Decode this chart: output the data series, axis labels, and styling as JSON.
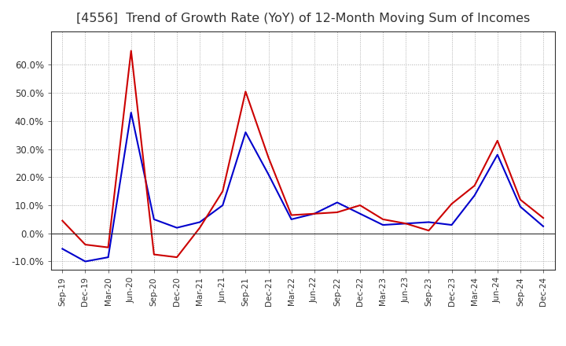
{
  "title": "[4556]  Trend of Growth Rate (YoY) of 12-Month Moving Sum of Incomes",
  "title_fontsize": 11.5,
  "xlabel": "",
  "ylabel": "",
  "ylim": [
    -0.13,
    0.72
  ],
  "yticks": [
    -0.1,
    0.0,
    0.1,
    0.2,
    0.3,
    0.4,
    0.5,
    0.6
  ],
  "background_color": "#ffffff",
  "grid_color": "#aaaaaa",
  "line_color_ordinary": "#0000cc",
  "line_color_net": "#cc0000",
  "x_labels": [
    "Sep-19",
    "Dec-19",
    "Mar-20",
    "Jun-20",
    "Sep-20",
    "Dec-20",
    "Mar-21",
    "Jun-21",
    "Sep-21",
    "Dec-21",
    "Mar-22",
    "Jun-22",
    "Sep-22",
    "Dec-22",
    "Mar-23",
    "Jun-23",
    "Sep-23",
    "Dec-23",
    "Mar-24",
    "Jun-24",
    "Sep-24",
    "Dec-24"
  ],
  "ordinary_income": [
    -0.055,
    -0.1,
    -0.085,
    0.43,
    0.05,
    0.02,
    0.04,
    0.1,
    0.36,
    0.21,
    0.05,
    0.07,
    0.11,
    0.07,
    0.03,
    0.035,
    0.04,
    0.03,
    0.135,
    0.28,
    0.095,
    0.025
  ],
  "net_income": [
    0.045,
    -0.04,
    -0.05,
    0.65,
    -0.075,
    -0.085,
    0.02,
    0.15,
    0.505,
    0.27,
    0.065,
    0.07,
    0.075,
    0.1,
    0.05,
    0.035,
    0.01,
    0.105,
    0.17,
    0.33,
    0.12,
    0.055
  ]
}
